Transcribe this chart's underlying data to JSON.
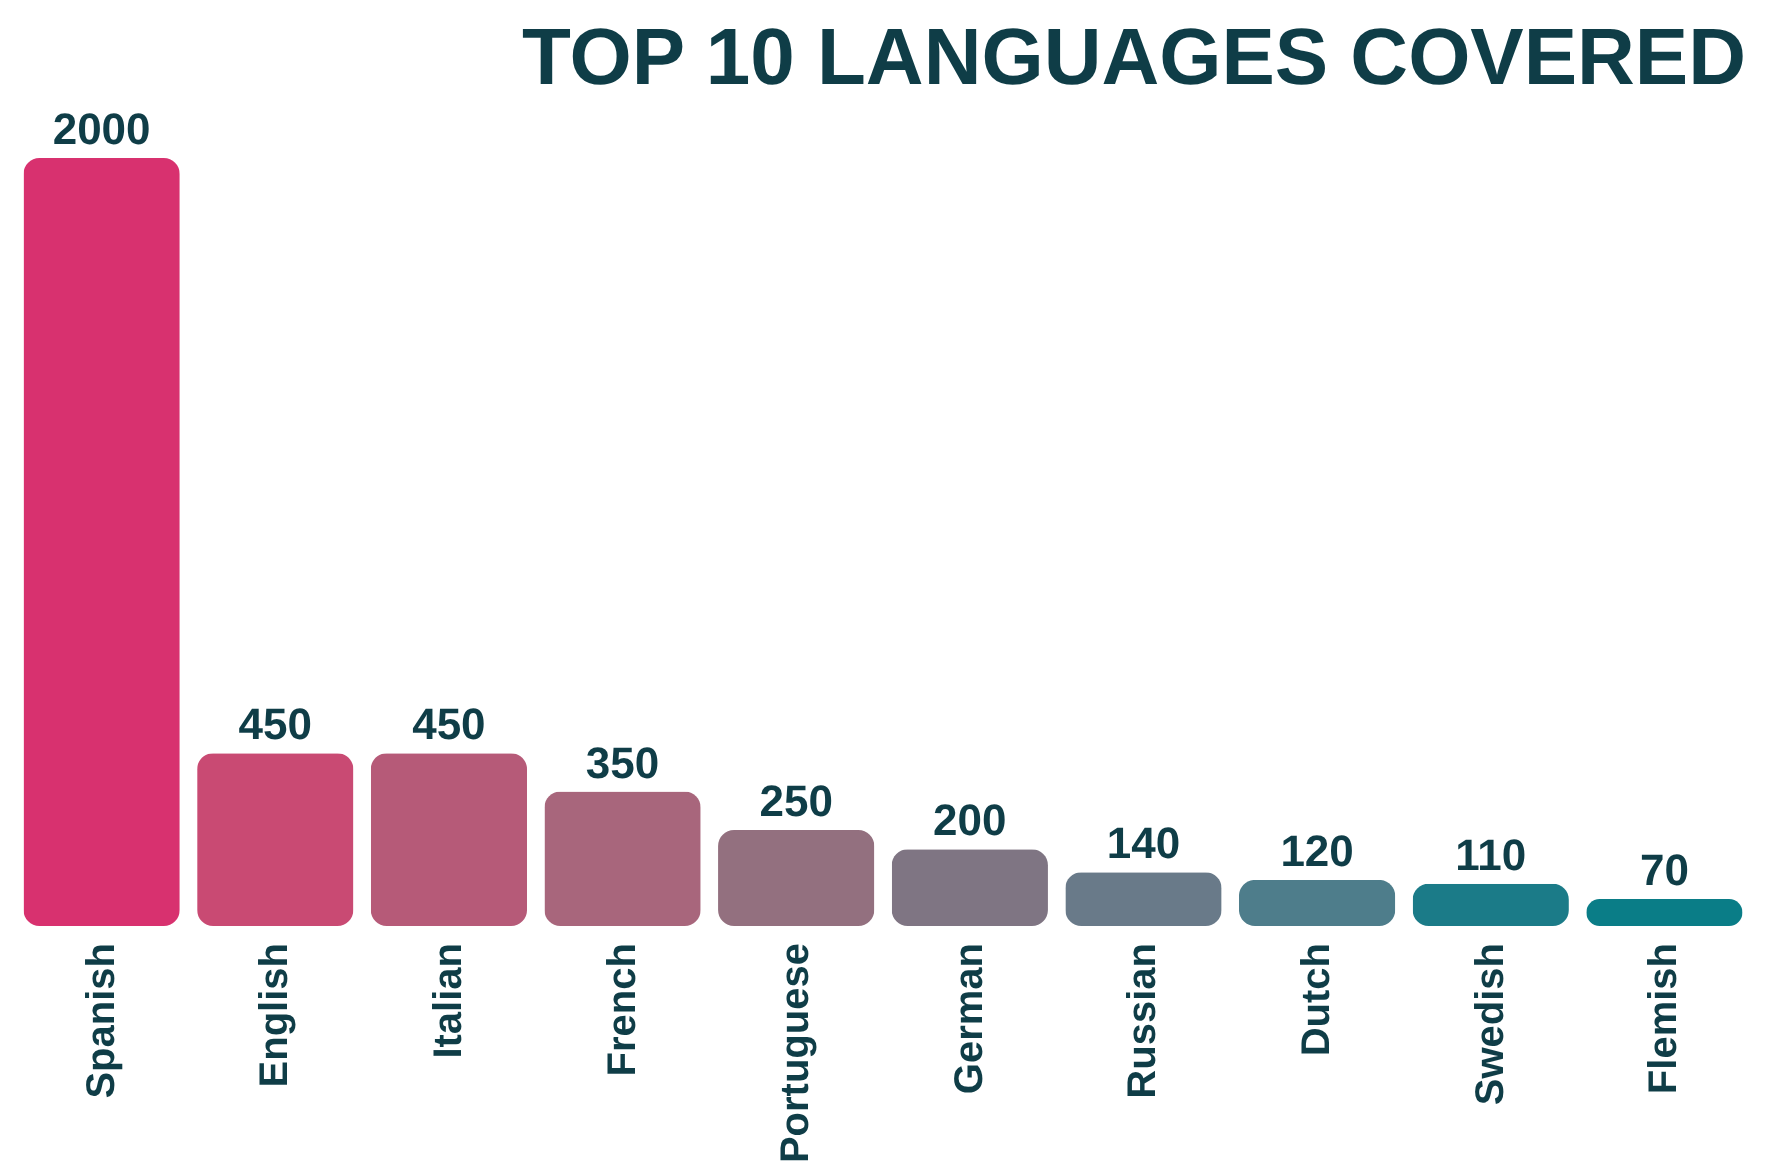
{
  "chart_data": {
    "type": "bar",
    "title": "TOP 10 LANGUAGES COVERED",
    "categories": [
      "Spanish",
      "English",
      "Italian",
      "French",
      "Portuguese",
      "German",
      "Russian",
      "Dutch",
      "Swedish",
      "Flemish"
    ],
    "values": [
      2000,
      450,
      450,
      350,
      250,
      200,
      140,
      120,
      110,
      70
    ],
    "colors": [
      "#d8316f",
      "#c94a73",
      "#b65a78",
      "#a8667c",
      "#93707f",
      "#7f7583",
      "#697a89",
      "#4e7d8b",
      "#1b7b88",
      "#0a7d87"
    ],
    "data_labels": true
  }
}
